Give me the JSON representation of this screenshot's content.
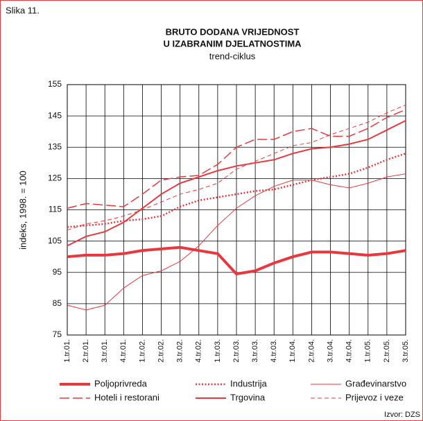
{
  "figure_label": "Slika 11.",
  "source": "Izvor: DZS",
  "chart_data": {
    "type": "line",
    "title": [
      "BRUTO DODANA VRIJEDNOST",
      "U IZABRANIM DJELATNOSTIMA"
    ],
    "subtitle": "trend-ciklus",
    "y_label": "indeks, 1998. = 100",
    "categories": [
      "1.tr.01.",
      "2.tr.01.",
      "3.tr.01.",
      "4.tr.01.",
      "1.tr.02.",
      "2.tr.02.",
      "3.tr.02.",
      "4.tr.02.",
      "1.tr.03.",
      "2.tr.03.",
      "3.tr.03.",
      "4.tr.03.",
      "1.tr.04.",
      "2.tr.04.",
      "3.tr.04.",
      "4.tr.04.",
      "1.tr.05.",
      "2.tr.05.",
      "3.tr.05."
    ],
    "ylim": [
      75,
      155
    ],
    "yticks": [
      75,
      85,
      95,
      105,
      115,
      125,
      135,
      145,
      155
    ],
    "grid": true,
    "series": [
      {
        "name": "Poljoprivreda",
        "color": "#e8383d",
        "width": 4,
        "dash": "solid",
        "values": [
          100,
          100.5,
          100.5,
          101,
          102,
          102.5,
          103,
          102,
          101,
          94.5,
          95.5,
          98,
          100,
          101.5,
          101.5,
          101,
          100.5,
          101,
          102
        ]
      },
      {
        "name": "Hoteli i restorani",
        "color": "#e8383d",
        "width": 1.5,
        "dash": "long",
        "values": [
          115.5,
          117,
          116.5,
          116,
          120,
          124.5,
          125.5,
          126,
          129.5,
          135,
          137.5,
          137.5,
          140,
          141,
          138.5,
          138.5,
          141,
          144.5,
          147
        ]
      },
      {
        "name": "Industrija",
        "color": "#e8383d",
        "width": 2.5,
        "dash": "dotted",
        "values": [
          109.5,
          110,
          110.5,
          111.5,
          112,
          113,
          116,
          118,
          119,
          120,
          121,
          121.5,
          123,
          124.5,
          125.5,
          126.5,
          128.5,
          131,
          133
        ]
      },
      {
        "name": "Trgovina",
        "color": "#e8383d",
        "width": 2,
        "dash": "solid",
        "values": [
          103.5,
          106.5,
          108,
          111,
          115.5,
          120,
          123.5,
          125.5,
          127.5,
          129,
          130,
          131,
          133,
          134.5,
          135,
          136,
          137.5,
          140.5,
          143.5
        ]
      },
      {
        "name": "Građevinarstvo",
        "color": "#e8383d",
        "width": 1,
        "dash": "solid",
        "values": [
          84.5,
          83,
          84.5,
          90,
          94,
          95.5,
          98.5,
          103.5,
          110,
          115.5,
          119.5,
          122.5,
          124.5,
          124.5,
          123,
          122,
          123.5,
          125.5,
          126.5
        ]
      },
      {
        "name": "Prijevoz i veze",
        "color": "#e8383d",
        "width": 1,
        "dash": "short",
        "values": [
          108.5,
          110.5,
          111.5,
          113,
          115,
          117.5,
          120,
          121.5,
          123.5,
          128,
          130.5,
          133,
          135.5,
          136.5,
          139,
          141,
          143,
          146,
          148.5
        ]
      }
    ]
  }
}
